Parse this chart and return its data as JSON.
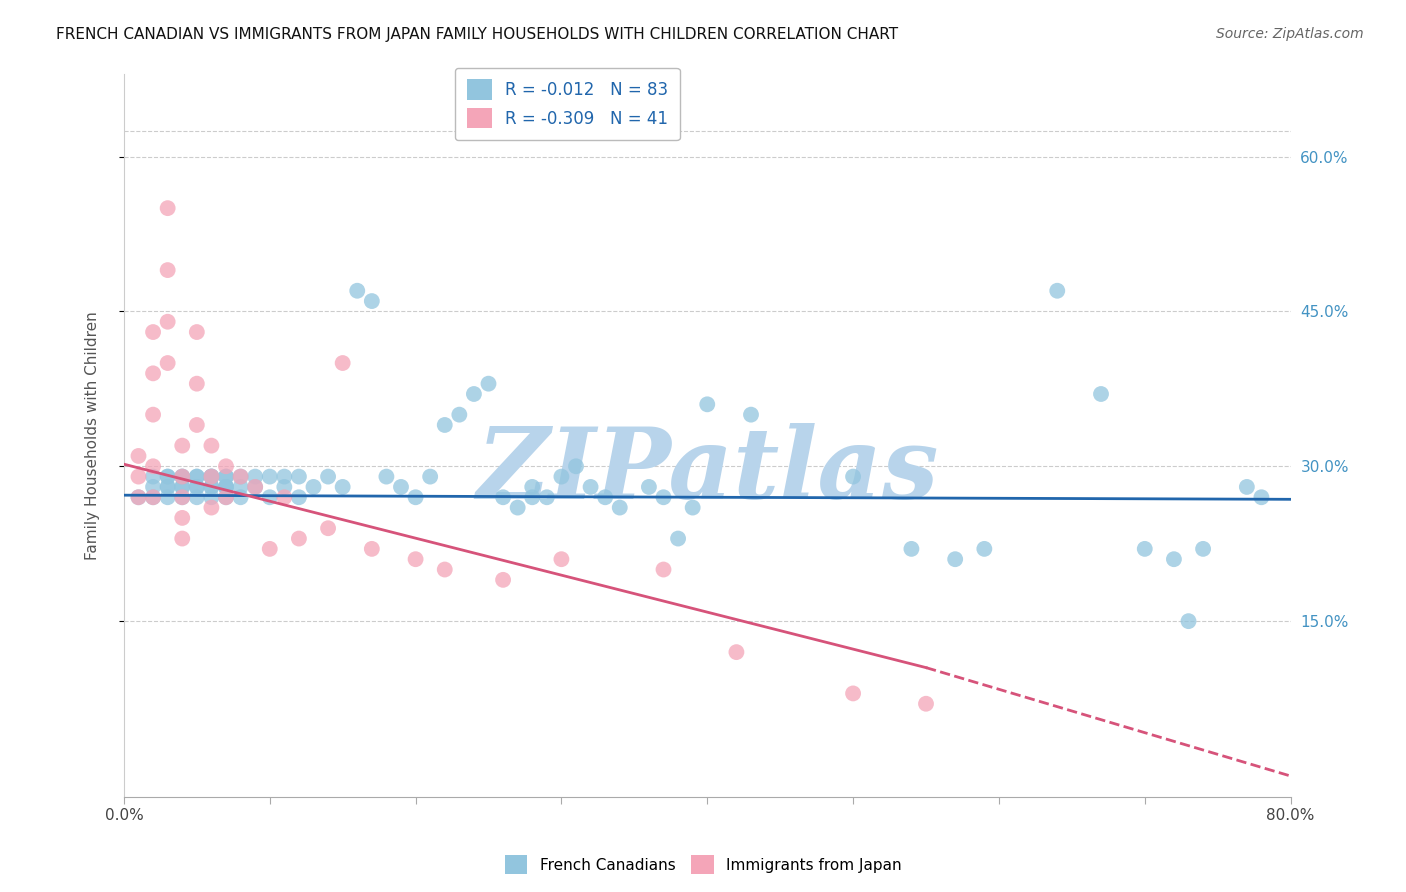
{
  "title": "FRENCH CANADIAN VS IMMIGRANTS FROM JAPAN FAMILY HOUSEHOLDS WITH CHILDREN CORRELATION CHART",
  "source": "Source: ZipAtlas.com",
  "ylabel": "Family Households with Children",
  "xlim": [
    0.0,
    0.8
  ],
  "ylim": [
    -0.02,
    0.68
  ],
  "ytick_positions": [
    0.15,
    0.3,
    0.45,
    0.6
  ],
  "ytick_labels": [
    "15.0%",
    "30.0%",
    "45.0%",
    "60.0%"
  ],
  "top_gridline": 0.625,
  "blue_R": -0.012,
  "blue_N": 83,
  "pink_R": -0.309,
  "pink_N": 41,
  "blue_color": "#92c5de",
  "pink_color": "#f4a5b8",
  "blue_line_color": "#2166ac",
  "pink_line_color": "#d6537a",
  "right_tick_color": "#4393c3",
  "watermark": "ZIPatlas",
  "watermark_color": "#b8d4eb",
  "legend_label_blue": "French Canadians",
  "legend_label_pink": "Immigrants from Japan",
  "blue_scatter_x": [
    0.01,
    0.02,
    0.02,
    0.02,
    0.03,
    0.03,
    0.03,
    0.03,
    0.03,
    0.04,
    0.04,
    0.04,
    0.04,
    0.04,
    0.05,
    0.05,
    0.05,
    0.05,
    0.05,
    0.06,
    0.06,
    0.06,
    0.06,
    0.06,
    0.06,
    0.07,
    0.07,
    0.07,
    0.07,
    0.07,
    0.07,
    0.08,
    0.08,
    0.08,
    0.09,
    0.09,
    0.1,
    0.1,
    0.11,
    0.11,
    0.12,
    0.12,
    0.13,
    0.14,
    0.15,
    0.16,
    0.17,
    0.18,
    0.19,
    0.2,
    0.21,
    0.22,
    0.23,
    0.24,
    0.25,
    0.26,
    0.27,
    0.28,
    0.28,
    0.29,
    0.3,
    0.31,
    0.32,
    0.33,
    0.34,
    0.36,
    0.37,
    0.38,
    0.39,
    0.4,
    0.43,
    0.5,
    0.54,
    0.57,
    0.59,
    0.64,
    0.67,
    0.7,
    0.72,
    0.73,
    0.74,
    0.77,
    0.78
  ],
  "blue_scatter_y": [
    0.27,
    0.29,
    0.28,
    0.27,
    0.29,
    0.28,
    0.29,
    0.28,
    0.27,
    0.29,
    0.28,
    0.29,
    0.27,
    0.28,
    0.29,
    0.28,
    0.29,
    0.27,
    0.28,
    0.29,
    0.28,
    0.29,
    0.28,
    0.27,
    0.29,
    0.28,
    0.29,
    0.28,
    0.27,
    0.29,
    0.28,
    0.29,
    0.28,
    0.27,
    0.29,
    0.28,
    0.29,
    0.27,
    0.29,
    0.28,
    0.29,
    0.27,
    0.28,
    0.29,
    0.28,
    0.47,
    0.46,
    0.29,
    0.28,
    0.27,
    0.29,
    0.34,
    0.35,
    0.37,
    0.38,
    0.27,
    0.26,
    0.27,
    0.28,
    0.27,
    0.29,
    0.3,
    0.28,
    0.27,
    0.26,
    0.28,
    0.27,
    0.23,
    0.26,
    0.36,
    0.35,
    0.29,
    0.22,
    0.21,
    0.22,
    0.47,
    0.37,
    0.22,
    0.21,
    0.15,
    0.22,
    0.28,
    0.27
  ],
  "pink_scatter_x": [
    0.01,
    0.01,
    0.01,
    0.02,
    0.02,
    0.02,
    0.02,
    0.02,
    0.03,
    0.03,
    0.03,
    0.03,
    0.04,
    0.04,
    0.04,
    0.04,
    0.04,
    0.05,
    0.05,
    0.05,
    0.06,
    0.06,
    0.06,
    0.07,
    0.07,
    0.08,
    0.09,
    0.1,
    0.11,
    0.12,
    0.14,
    0.15,
    0.17,
    0.2,
    0.22,
    0.26,
    0.3,
    0.37,
    0.42,
    0.5,
    0.55
  ],
  "pink_scatter_y": [
    0.31,
    0.29,
    0.27,
    0.43,
    0.39,
    0.35,
    0.3,
    0.27,
    0.55,
    0.49,
    0.44,
    0.4,
    0.32,
    0.29,
    0.27,
    0.25,
    0.23,
    0.43,
    0.38,
    0.34,
    0.32,
    0.29,
    0.26,
    0.3,
    0.27,
    0.29,
    0.28,
    0.22,
    0.27,
    0.23,
    0.24,
    0.4,
    0.22,
    0.21,
    0.2,
    0.19,
    0.21,
    0.2,
    0.12,
    0.08,
    0.07
  ],
  "blue_line_x0": 0.0,
  "blue_line_x1": 0.8,
  "blue_line_y0": 0.272,
  "blue_line_y1": 0.268,
  "pink_line_x0": 0.0,
  "pink_line_x1": 0.55,
  "pink_line_dash_x0": 0.55,
  "pink_line_dash_x1": 0.8,
  "pink_line_y0": 0.302,
  "pink_line_y1": 0.105,
  "pink_line_dash_y1": 0.0
}
